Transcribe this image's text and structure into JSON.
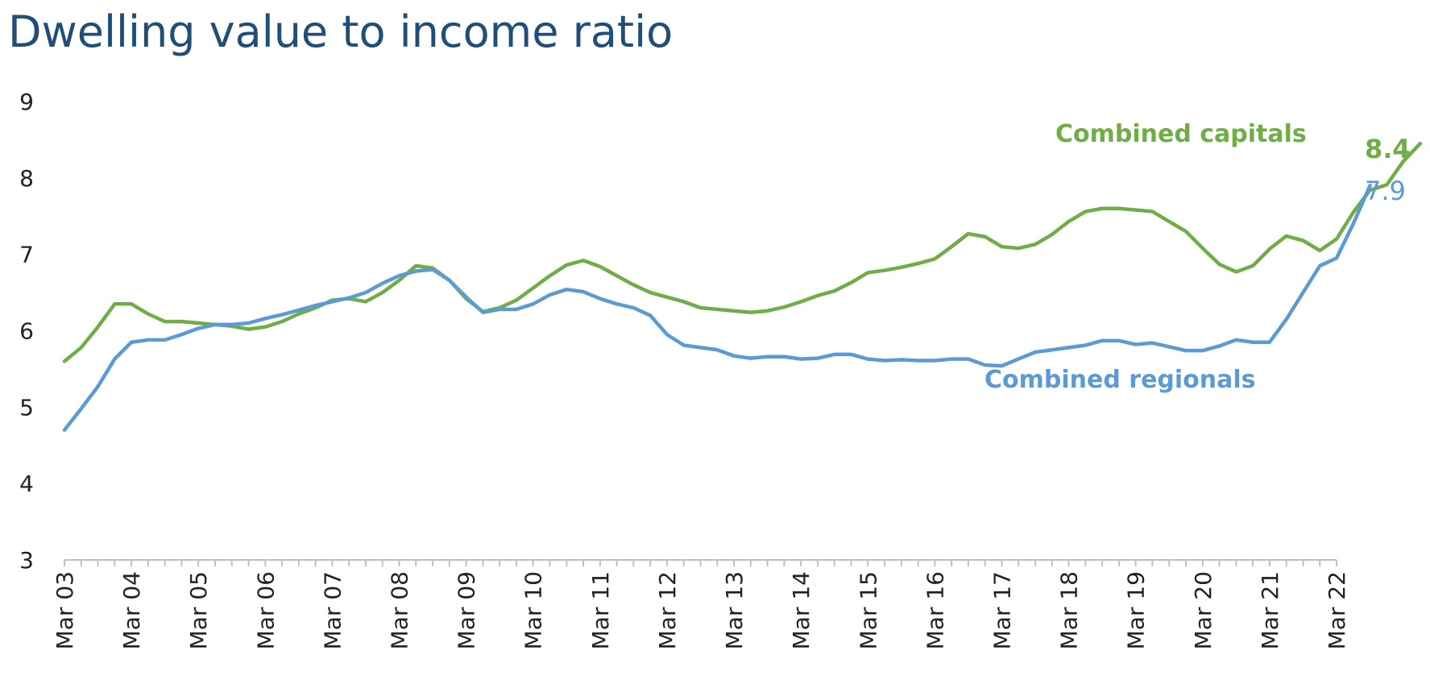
{
  "chart_data": {
    "type": "line",
    "title": "Dwelling value to income ratio",
    "xlabel": "",
    "ylabel": "",
    "ylim": [
      3,
      9
    ],
    "yticks": [
      "3",
      "4",
      "5",
      "6",
      "7",
      "8",
      "9"
    ],
    "xlim": [
      0,
      76
    ],
    "x_ticks": [
      {
        "label": "Mar 03",
        "x": 0
      },
      {
        "label": "Mar 04",
        "x": 4
      },
      {
        "label": "Mar 05",
        "x": 8
      },
      {
        "label": "Mar 06",
        "x": 12
      },
      {
        "label": "Mar 07",
        "x": 16
      },
      {
        "label": "Mar 08",
        "x": 20
      },
      {
        "label": "Mar 09",
        "x": 24
      },
      {
        "label": "Mar 10",
        "x": 28
      },
      {
        "label": "Mar 11",
        "x": 32
      },
      {
        "label": "Mar 12",
        "x": 36
      },
      {
        "label": "Mar 13",
        "x": 40
      },
      {
        "label": "Mar 14",
        "x": 44
      },
      {
        "label": "Mar 15",
        "x": 48
      },
      {
        "label": "Mar 16",
        "x": 52
      },
      {
        "label": "Mar 17",
        "x": 56
      },
      {
        "label": "Mar 18",
        "x": 60
      },
      {
        "label": "Mar 19",
        "x": 64
      },
      {
        "label": "Mar 20",
        "x": 68
      },
      {
        "label": "Mar 21",
        "x": 72
      },
      {
        "label": "Mar 22",
        "x": 76
      }
    ],
    "grid": false,
    "series": [
      {
        "name": "Combined capitals",
        "color": "#70ad47",
        "end_label": "8.4",
        "values": [
          5.6,
          5.78,
          6.05,
          6.35,
          6.35,
          6.22,
          6.12,
          6.12,
          6.1,
          6.08,
          6.06,
          6.02,
          6.05,
          6.12,
          6.22,
          6.3,
          6.4,
          6.42,
          6.38,
          6.5,
          6.66,
          6.85,
          6.82,
          6.66,
          6.42,
          6.25,
          6.3,
          6.4,
          6.56,
          6.72,
          6.86,
          6.92,
          6.84,
          6.72,
          6.6,
          6.5,
          6.44,
          6.38,
          6.3,
          6.28,
          6.26,
          6.24,
          6.26,
          6.31,
          6.38,
          6.46,
          6.52,
          6.63,
          6.76,
          6.79,
          6.83,
          6.88,
          6.94,
          7.1,
          7.27,
          7.23,
          7.1,
          7.08,
          7.13,
          7.26,
          7.43,
          7.56,
          7.6,
          7.6,
          7.58,
          7.56,
          7.43,
          7.3,
          7.08,
          6.87,
          6.77,
          6.85,
          7.07,
          7.24,
          7.18,
          7.05,
          7.2,
          7.55,
          7.84,
          7.91,
          8.22,
          8.45
        ]
      },
      {
        "name": "Combined regionals",
        "color": "#5b9bd5",
        "end_label": "7.9",
        "values": [
          4.7,
          4.98,
          5.27,
          5.63,
          5.85,
          5.88,
          5.88,
          5.95,
          6.03,
          6.08,
          6.08,
          6.1,
          6.16,
          6.21,
          6.27,
          6.33,
          6.38,
          6.43,
          6.5,
          6.62,
          6.72,
          6.78,
          6.8,
          6.66,
          6.44,
          6.24,
          6.28,
          6.28,
          6.35,
          6.47,
          6.54,
          6.51,
          6.42,
          6.35,
          6.3,
          6.2,
          5.95,
          5.81,
          5.78,
          5.75,
          5.67,
          5.64,
          5.66,
          5.66,
          5.63,
          5.64,
          5.69,
          5.69,
          5.63,
          5.61,
          5.62,
          5.61,
          5.61,
          5.63,
          5.63,
          5.55,
          5.54,
          5.63,
          5.72,
          5.75,
          5.78,
          5.81,
          5.87,
          5.87,
          5.82,
          5.84,
          5.79,
          5.74,
          5.74,
          5.8,
          5.88,
          5.85,
          5.85,
          6.15,
          6.5,
          6.85,
          6.95,
          7.4,
          7.9
        ]
      }
    ]
  }
}
